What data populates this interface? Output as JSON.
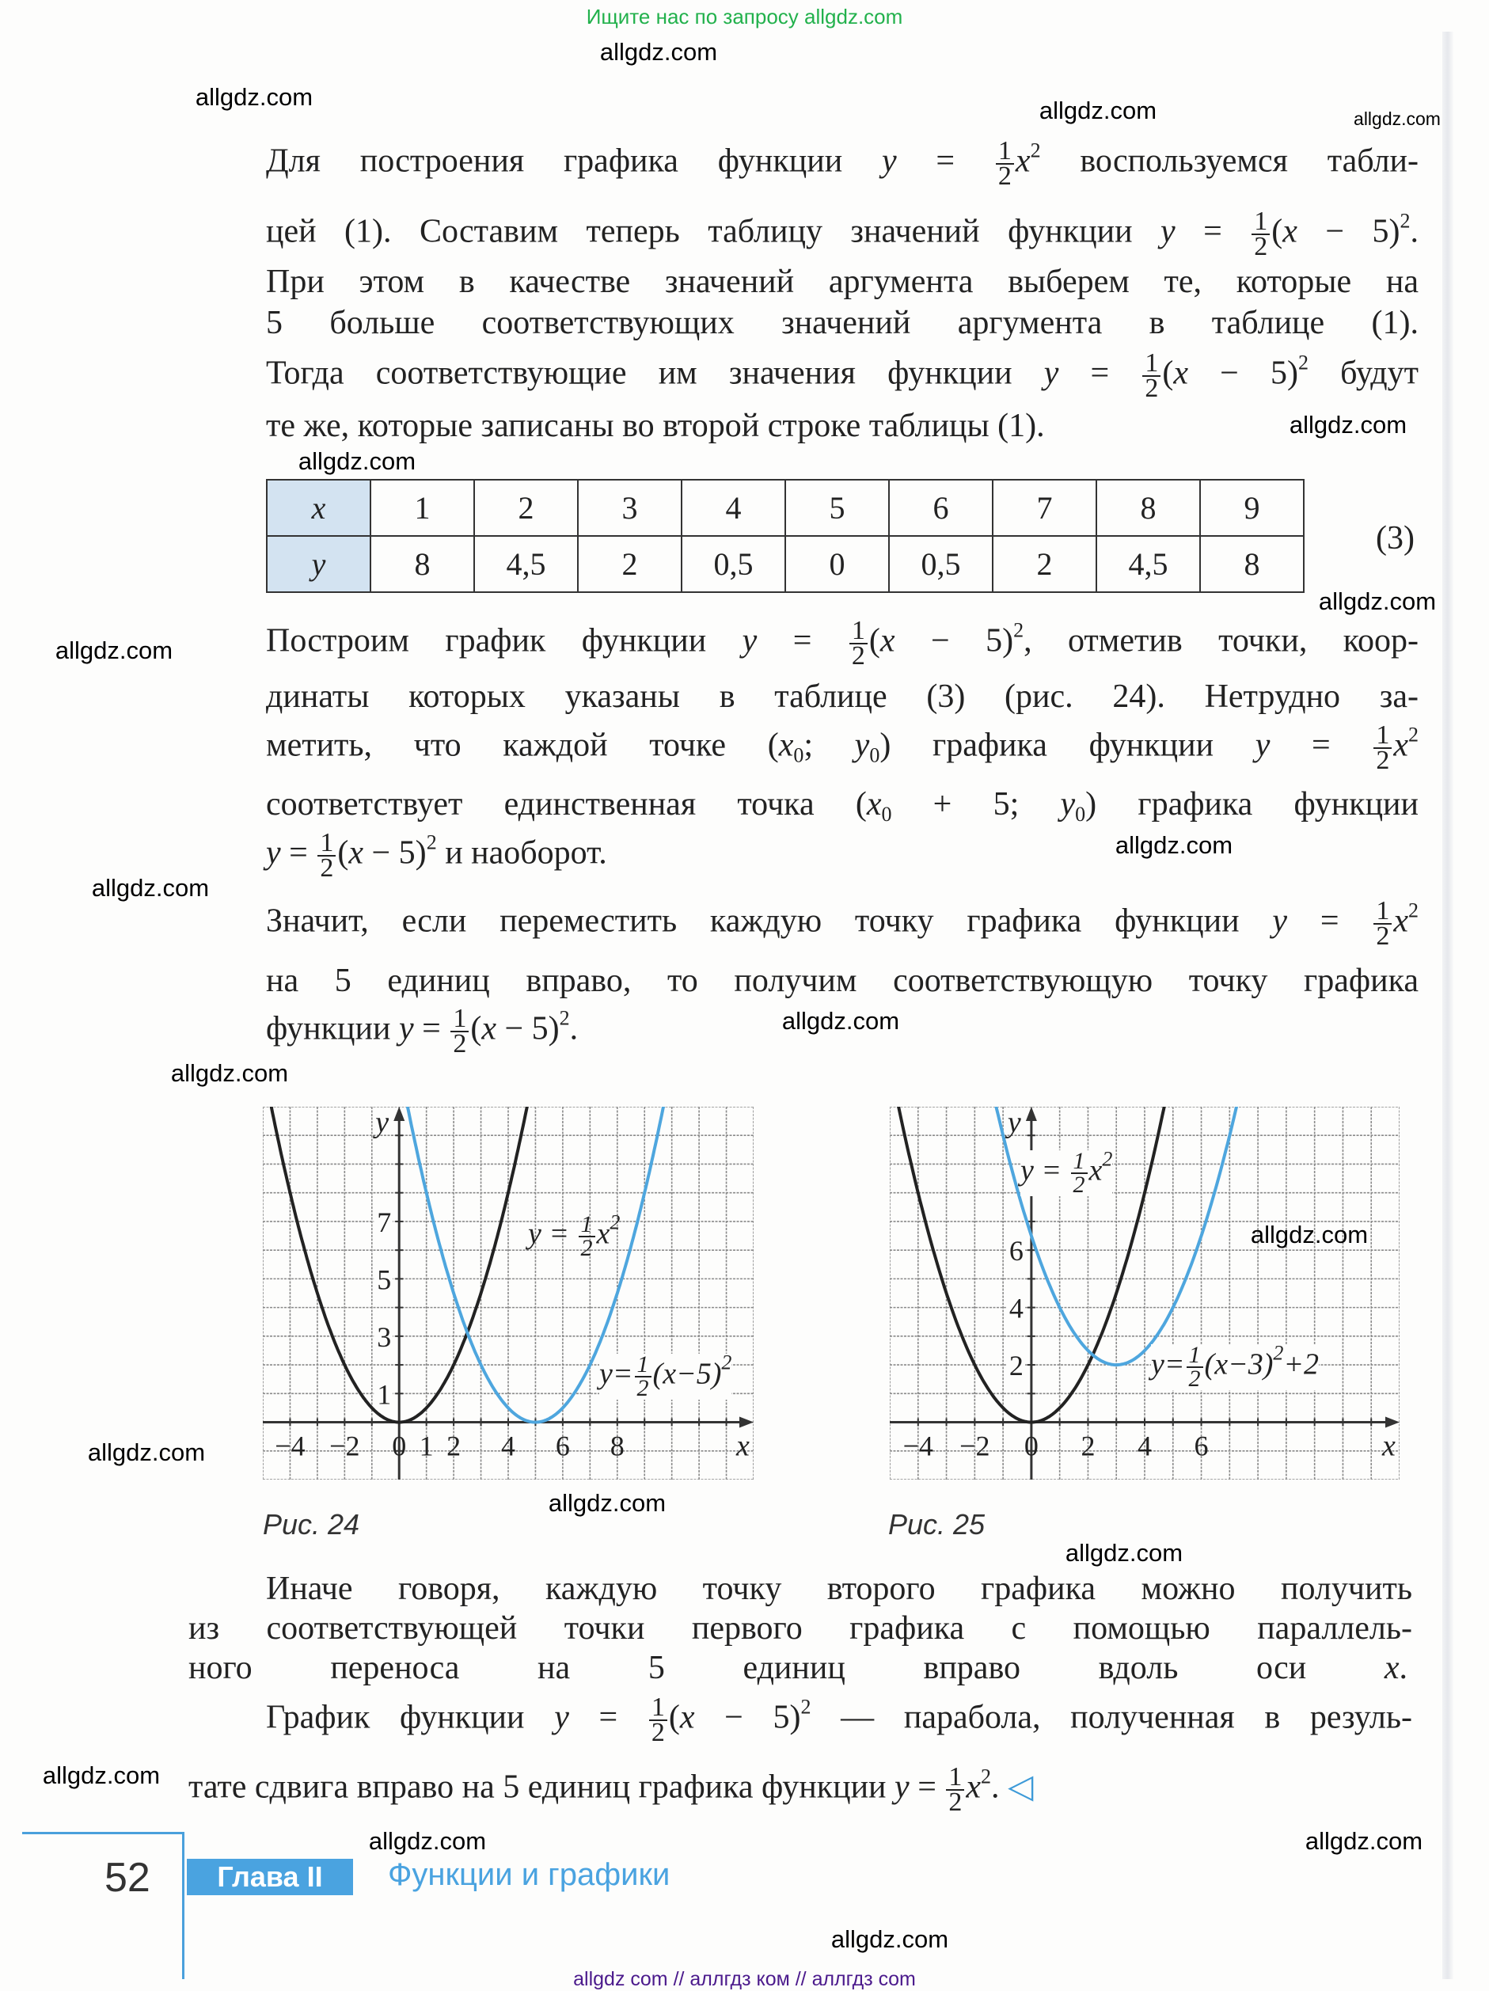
{
  "banner": "Ищите нас по запросу allgdz.com",
  "watermarks": [
    "allgdz.com",
    "allgdz.com",
    "allgdz.com",
    "allgdz.com",
    "allgdz.com",
    "allgdz.com",
    "allgdz.com",
    "allgdz.com",
    "allgdz.com",
    "allgdz.com",
    "allgdz.com",
    "allgdz.com",
    "allgdz.com",
    "allgdz.com",
    "allgdz.com",
    "allgdz.com",
    "allgdz.com",
    "allgdz.com",
    "allgdz.com",
    "allgdz.com"
  ],
  "text_lines": [
    [
      "Для построения графика функции ",
      {
        "i": "y"
      },
      " = ",
      {
        "f": [
          "1",
          "2"
        ]
      },
      {
        "i": "x"
      },
      {
        "s": "2"
      },
      " воспользуемся табли-"
    ],
    [
      "цей (1). Составим теперь таблицу значений функции ",
      {
        "i": "y"
      },
      " = ",
      {
        "f": [
          "1",
          "2"
        ]
      },
      "(",
      {
        "i": "x"
      },
      " − 5)",
      {
        "s": "2"
      },
      "."
    ],
    [
      "При этом в качестве значений аргумента выберем те, которые на"
    ],
    [
      "5 больше соответствующих значений аргумента в таблице (1)."
    ],
    [
      "Тогда соответствующие им значения функции ",
      {
        "i": "y"
      },
      " = ",
      {
        "f": [
          "1",
          "2"
        ]
      },
      "(",
      {
        "i": "x"
      },
      " − 5)",
      {
        "s": "2"
      },
      " будут"
    ],
    [
      "те же, которые записаны во второй строке таблицы (1)."
    ],
    [
      "Построим график функции ",
      {
        "i": "y"
      },
      " = ",
      {
        "f": [
          "1",
          "2"
        ]
      },
      "(",
      {
        "i": "x"
      },
      " − 5)",
      {
        "s": "2"
      },
      ", отметив точки, коор-"
    ],
    [
      "динаты которых указаны в таблице (3) (рис. 24). Нетрудно за-"
    ],
    [
      "метить, что каждой точке (",
      {
        "i": "x"
      },
      {
        "b": "0"
      },
      "; ",
      {
        "i": "y"
      },
      {
        "b": "0"
      },
      ") графика функции ",
      {
        "i": "y"
      },
      " = ",
      {
        "f": [
          "1",
          "2"
        ]
      },
      {
        "i": "x"
      },
      {
        "s": "2"
      }
    ],
    [
      "соответствует единственная точка (",
      {
        "i": "x"
      },
      {
        "b": "0"
      },
      " + 5; ",
      {
        "i": "y"
      },
      {
        "b": "0"
      },
      ") графика функции"
    ],
    [
      {
        "i": "y"
      },
      " = ",
      {
        "f": [
          "1",
          "2"
        ]
      },
      "(",
      {
        "i": "x"
      },
      " − 5)",
      {
        "s": "2"
      },
      " и наоборот."
    ],
    [
      "Значит, если переместить каждую точку графика функции ",
      {
        "i": "y"
      },
      " = ",
      {
        "f": [
          "1",
          "2"
        ]
      },
      {
        "i": "x"
      },
      {
        "s": "2"
      }
    ],
    [
      "на 5 единиц вправо, то получим соответствующую точку графика"
    ],
    [
      "функции ",
      {
        "i": "y"
      },
      " = ",
      {
        "f": [
          "1",
          "2"
        ]
      },
      "(",
      {
        "i": "x"
      },
      " − 5)",
      {
        "s": "2"
      },
      "."
    ],
    [
      "Иначе говоря, каждую точку второго графика можно получить"
    ],
    [
      "из соответствующей точки первого графика с помощью параллель-"
    ],
    [
      "ного переноса на 5 единиц вправо вдоль оси ",
      {
        "i": "x"
      },
      "."
    ],
    [
      "График функции ",
      {
        "i": "y"
      },
      " = ",
      {
        "f": [
          "1",
          "2"
        ]
      },
      "(",
      {
        "i": "x"
      },
      " − 5)",
      {
        "s": "2"
      },
      " — парабола, полученная в резуль-"
    ],
    [
      "тате сдвига вправо на 5 единиц графика функции ",
      {
        "i": "y"
      },
      " = ",
      {
        "f": [
          "1",
          "2"
        ]
      },
      {
        "i": "x"
      },
      {
        "s": "2"
      },
      ". ",
      {
        "tri": "◁"
      }
    ]
  ],
  "table": {
    "number": "(3)",
    "rows": [
      {
        "label": "x",
        "values": [
          "1",
          "2",
          "3",
          "4",
          "5",
          "6",
          "7",
          "8",
          "9"
        ]
      },
      {
        "label": "y",
        "values": [
          "8",
          "4,5",
          "2",
          "0,5",
          "0",
          "0,5",
          "2",
          "4,5",
          "8"
        ]
      }
    ]
  },
  "figures": [
    {
      "caption": "Рис.  24",
      "xlim": [
        -5,
        13
      ],
      "ylim": [
        -2,
        11
      ],
      "axis_labels": {
        "x": "x",
        "y": "y"
      },
      "x_ticks": [
        {
          "v": -4,
          "t": "−4"
        },
        {
          "v": -2,
          "t": "−2"
        },
        {
          "v": 0,
          "t": "0"
        },
        {
          "v": 1,
          "t": "1"
        },
        {
          "v": 2,
          "t": "2"
        },
        {
          "v": 4,
          "t": "4"
        },
        {
          "v": 6,
          "t": "6"
        },
        {
          "v": 8,
          "t": "8"
        }
      ],
      "y_ticks": [
        {
          "v": 1,
          "t": "1"
        },
        {
          "v": 3,
          "t": "3"
        },
        {
          "v": 5,
          "t": "5"
        },
        {
          "v": 7,
          "t": "7"
        }
      ],
      "curves": [
        {
          "a": 0.5,
          "h": 0,
          "k": 0,
          "color": "#222222",
          "label": [
            {
              "i": "y"
            },
            " = ",
            {
              "f": [
                "1",
                "2"
              ]
            },
            {
              "i": "x"
            },
            {
              "s": "2"
            }
          ]
        },
        {
          "a": 0.5,
          "h": 5,
          "k": 0,
          "color": "#4ea6de",
          "label": [
            {
              "i": "y"
            },
            "=",
            {
              "f": [
                "1",
                "2"
              ]
            },
            "(",
            {
              "i": "x"
            },
            "−5)",
            {
              "s": "2"
            }
          ]
        }
      ]
    },
    {
      "caption": "Рис.  25",
      "xlim": [
        -5,
        13
      ],
      "ylim": [
        -2,
        11
      ],
      "axis_labels": {
        "x": "x",
        "y": "y"
      },
      "x_ticks": [
        {
          "v": -4,
          "t": "−4"
        },
        {
          "v": -2,
          "t": "−2"
        },
        {
          "v": 0,
          "t": "0"
        },
        {
          "v": 2,
          "t": "2"
        },
        {
          "v": 4,
          "t": "4"
        },
        {
          "v": 6,
          "t": "6"
        }
      ],
      "y_ticks": [
        {
          "v": 2,
          "t": "2"
        },
        {
          "v": 4,
          "t": "4"
        },
        {
          "v": 6,
          "t": "6"
        }
      ],
      "curves": [
        {
          "a": 0.5,
          "h": 0,
          "k": 0,
          "color": "#222222",
          "label": [
            {
              "i": "y"
            },
            " = ",
            {
              "f": [
                "1",
                "2"
              ]
            },
            {
              "i": "x"
            },
            {
              "s": "2"
            }
          ]
        },
        {
          "a": 0.5,
          "h": 3,
          "k": 2,
          "color": "#4ea6de",
          "label": [
            {
              "i": "y"
            },
            "=",
            {
              "f": [
                "1",
                "2"
              ]
            },
            "(",
            {
              "i": "x"
            },
            "−3)",
            {
              "s": "2"
            },
            "+2"
          ]
        }
      ]
    }
  ],
  "footer": {
    "page_number": "52",
    "chapter": "Глава II",
    "chapter_title": "Функции и графики"
  },
  "bottom_banner": "allgdz com  //  аллгдз ком  //  аллгдз com"
}
